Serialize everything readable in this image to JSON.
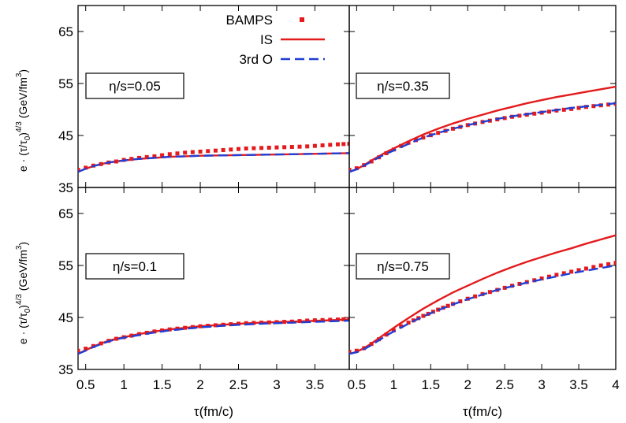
{
  "figure": {
    "xlabel": "τ(fm/c)",
    "ylabel_parts": [
      "e · (τ/τ",
      "0",
      ")",
      "4/3",
      " (GeV/fm",
      "3",
      ")"
    ]
  },
  "legend": [
    {
      "label": "BAMPS",
      "color": "#e41a1c",
      "style": "dots"
    },
    {
      "label": "IS",
      "color": "#e41a1c",
      "style": "solid"
    },
    {
      "label": "3rd O",
      "color": "#1f3fd6",
      "style": "dashed"
    }
  ],
  "chart_data": [
    {
      "type": "line",
      "panel": "top-left",
      "annotation": "η/s=0.05",
      "xlim": [
        0.4,
        3.95
      ],
      "ylim": [
        35,
        70
      ],
      "xticks": [],
      "yticks": [
        "35",
        "45",
        "55",
        "65"
      ],
      "x_tick_values": [
        0.5,
        1,
        1.5,
        2,
        2.5,
        3,
        3.5
      ],
      "y_tick_values": [
        35,
        45,
        55,
        65
      ],
      "series": [
        {
          "name": "BAMPS",
          "x": [
            0.4,
            0.5,
            0.6,
            0.7,
            0.8,
            0.9,
            1,
            1.2,
            1.4,
            1.6,
            1.8,
            2,
            2.2,
            2.4,
            2.6,
            2.8,
            3,
            3.2,
            3.4,
            3.6,
            3.8,
            3.95
          ],
          "y": [
            38.4,
            38.8,
            39.2,
            39.5,
            39.8,
            40,
            40.3,
            40.7,
            41,
            41.4,
            41.7,
            41.9,
            42.1,
            42.3,
            42.5,
            42.6,
            42.7,
            42.8,
            42.9,
            43.1,
            43.3,
            43.4
          ]
        },
        {
          "name": "IS",
          "x": [
            0.4,
            0.5,
            0.6,
            0.7,
            0.8,
            0.9,
            1,
            1.2,
            1.4,
            1.6,
            1.8,
            2,
            2.4,
            2.8,
            3.2,
            3.6,
            3.95
          ],
          "y": [
            38,
            38.6,
            39.1,
            39.5,
            39.8,
            40,
            40.2,
            40.5,
            40.7,
            40.9,
            41,
            41.1,
            41.2,
            41.3,
            41.4,
            41.5,
            41.6
          ]
        },
        {
          "name": "3rd O",
          "x": [
            0.4,
            0.5,
            0.6,
            0.7,
            0.8,
            0.9,
            1,
            1.2,
            1.4,
            1.6,
            1.8,
            2,
            2.4,
            2.8,
            3.2,
            3.6,
            3.95
          ],
          "y": [
            38,
            38.6,
            39.1,
            39.5,
            39.8,
            40,
            40.2,
            40.5,
            40.7,
            40.9,
            41,
            41.1,
            41.2,
            41.3,
            41.4,
            41.5,
            41.6
          ]
        }
      ]
    },
    {
      "type": "line",
      "panel": "top-right",
      "annotation": "η/s=0.35",
      "xlim": [
        0.4,
        4.0
      ],
      "ylim": [
        35,
        70
      ],
      "xticks": [],
      "yticks": [],
      "x_tick_values": [
        0.5,
        1,
        1.5,
        2,
        2.5,
        3,
        3.5,
        4
      ],
      "y_tick_values": [
        35,
        45,
        55,
        65
      ],
      "series": [
        {
          "name": "BAMPS",
          "x": [
            0.4,
            0.5,
            0.6,
            0.7,
            0.8,
            0.9,
            1,
            1.1,
            1.2,
            1.4,
            1.6,
            1.8,
            2,
            2.2,
            2.4,
            2.6,
            2.8,
            3,
            3.2,
            3.4,
            3.6,
            3.8,
            4
          ],
          "y": [
            38.4,
            38.7,
            39.3,
            40,
            40.8,
            41.6,
            42.3,
            43,
            43.6,
            44.6,
            45.5,
            46.3,
            47,
            47.6,
            48.1,
            48.6,
            49,
            49.4,
            49.8,
            50.1,
            50.5,
            50.8,
            51.1
          ]
        },
        {
          "name": "IS",
          "x": [
            0.4,
            0.5,
            0.6,
            0.7,
            0.8,
            0.9,
            1,
            1.2,
            1.4,
            1.6,
            1.8,
            2,
            2.2,
            2.4,
            2.6,
            2.8,
            3,
            3.2,
            3.4,
            3.6,
            3.8,
            4
          ],
          "y": [
            38,
            38.5,
            39.3,
            40.2,
            41,
            41.8,
            42.5,
            43.9,
            45.2,
            46.3,
            47.3,
            48.2,
            49,
            49.8,
            50.5,
            51.2,
            51.8,
            52.4,
            52.9,
            53.4,
            53.9,
            54.4
          ]
        },
        {
          "name": "3rd O",
          "x": [
            0.4,
            0.5,
            0.6,
            0.7,
            0.8,
            0.9,
            1,
            1.2,
            1.4,
            1.6,
            1.8,
            2,
            2.2,
            2.4,
            2.6,
            2.8,
            3,
            3.2,
            3.4,
            3.6,
            3.8,
            4
          ],
          "y": [
            38,
            38.5,
            39.2,
            40,
            40.8,
            41.5,
            42.1,
            43.4,
            44.6,
            45.5,
            46.3,
            47,
            47.6,
            48.2,
            48.7,
            49.1,
            49.5,
            49.9,
            50.3,
            50.6,
            50.9,
            51.2
          ]
        }
      ]
    },
    {
      "type": "line",
      "panel": "bottom-left",
      "annotation": "η/s=0.1",
      "xlim": [
        0.4,
        3.95
      ],
      "ylim": [
        35,
        70
      ],
      "xticks": [
        "0.5",
        "1",
        "1.5",
        "2",
        "2.5",
        "3",
        "3.5"
      ],
      "yticks": [
        "35",
        "45",
        "55",
        "65"
      ],
      "x_tick_values": [
        0.5,
        1,
        1.5,
        2,
        2.5,
        3,
        3.5
      ],
      "y_tick_values": [
        35,
        45,
        55,
        65
      ],
      "series": [
        {
          "name": "BAMPS",
          "x": [
            0.4,
            0.5,
            0.6,
            0.7,
            0.8,
            0.9,
            1,
            1.2,
            1.4,
            1.6,
            1.8,
            2,
            2.2,
            2.4,
            2.6,
            2.8,
            3,
            3.2,
            3.4,
            3.6,
            3.8,
            3.95
          ],
          "y": [
            38.6,
            39,
            39.5,
            40,
            40.5,
            40.9,
            41.2,
            41.8,
            42.3,
            42.7,
            43,
            43.3,
            43.5,
            43.7,
            43.9,
            44,
            44.1,
            44.2,
            44.4,
            44.5,
            44.6,
            44.7
          ]
        },
        {
          "name": "IS",
          "x": [
            0.4,
            0.5,
            0.6,
            0.7,
            0.8,
            0.9,
            1,
            1.2,
            1.4,
            1.6,
            1.8,
            2,
            2.4,
            2.8,
            3.2,
            3.6,
            3.95
          ],
          "y": [
            38,
            38.7,
            39.4,
            40,
            40.5,
            40.9,
            41.2,
            41.8,
            42.3,
            42.7,
            43,
            43.3,
            43.7,
            44,
            44.2,
            44.4,
            44.6
          ]
        },
        {
          "name": "3rd O",
          "x": [
            0.4,
            0.5,
            0.6,
            0.7,
            0.8,
            0.9,
            1,
            1.2,
            1.4,
            1.6,
            1.8,
            2,
            2.4,
            2.8,
            3.2,
            3.6,
            3.95
          ],
          "y": [
            38,
            38.6,
            39.3,
            39.9,
            40.4,
            40.8,
            41.1,
            41.6,
            42.1,
            42.5,
            42.8,
            43.1,
            43.5,
            43.8,
            44,
            44.2,
            44.4
          ]
        }
      ]
    },
    {
      "type": "line",
      "panel": "bottom-right",
      "annotation": "η/s=0.75",
      "xlim": [
        0.4,
        4.0
      ],
      "ylim": [
        35,
        70
      ],
      "xticks": [
        "0.5",
        "1",
        "1.5",
        "2",
        "2.5",
        "3",
        "3.5",
        "4"
      ],
      "yticks": [],
      "x_tick_values": [
        0.5,
        1,
        1.5,
        2,
        2.5,
        3,
        3.5,
        4
      ],
      "y_tick_values": [
        35,
        45,
        55,
        65
      ],
      "series": [
        {
          "name": "BAMPS",
          "x": [
            0.4,
            0.5,
            0.6,
            0.7,
            0.8,
            0.9,
            1,
            1.1,
            1.2,
            1.4,
            1.6,
            1.8,
            2,
            2.2,
            2.4,
            2.6,
            2.8,
            3,
            3.2,
            3.4,
            3.6,
            3.8,
            4
          ],
          "y": [
            38.4,
            38.6,
            39.1,
            39.9,
            40.8,
            41.7,
            42.5,
            43.3,
            44,
            45.3,
            46.5,
            47.6,
            48.6,
            49.5,
            50.3,
            51.1,
            51.8,
            52.5,
            53.2,
            53.8,
            54.4,
            55,
            55.5
          ]
        },
        {
          "name": "IS",
          "x": [
            0.4,
            0.5,
            0.6,
            0.7,
            0.8,
            0.9,
            1,
            1.2,
            1.4,
            1.6,
            1.8,
            2,
            2.2,
            2.4,
            2.6,
            2.8,
            3,
            3.2,
            3.4,
            3.6,
            3.8,
            4
          ],
          "y": [
            38,
            38.4,
            39.1,
            40,
            41,
            42,
            43,
            44.9,
            46.7,
            48.3,
            49.8,
            51.1,
            52.4,
            53.6,
            54.7,
            55.7,
            56.6,
            57.5,
            58.3,
            59.2,
            60,
            60.8
          ]
        },
        {
          "name": "3rd O",
          "x": [
            0.4,
            0.5,
            0.6,
            0.7,
            0.8,
            0.9,
            1,
            1.2,
            1.4,
            1.6,
            1.8,
            2,
            2.2,
            2.4,
            2.6,
            2.8,
            3,
            3.2,
            3.4,
            3.6,
            3.8,
            4
          ],
          "y": [
            38,
            38.3,
            38.9,
            39.7,
            40.6,
            41.5,
            42.3,
            43.8,
            45.2,
            46.4,
            47.5,
            48.5,
            49.4,
            50.3,
            51,
            51.7,
            52.3,
            52.9,
            53.5,
            54,
            54.5,
            55
          ]
        }
      ]
    }
  ]
}
